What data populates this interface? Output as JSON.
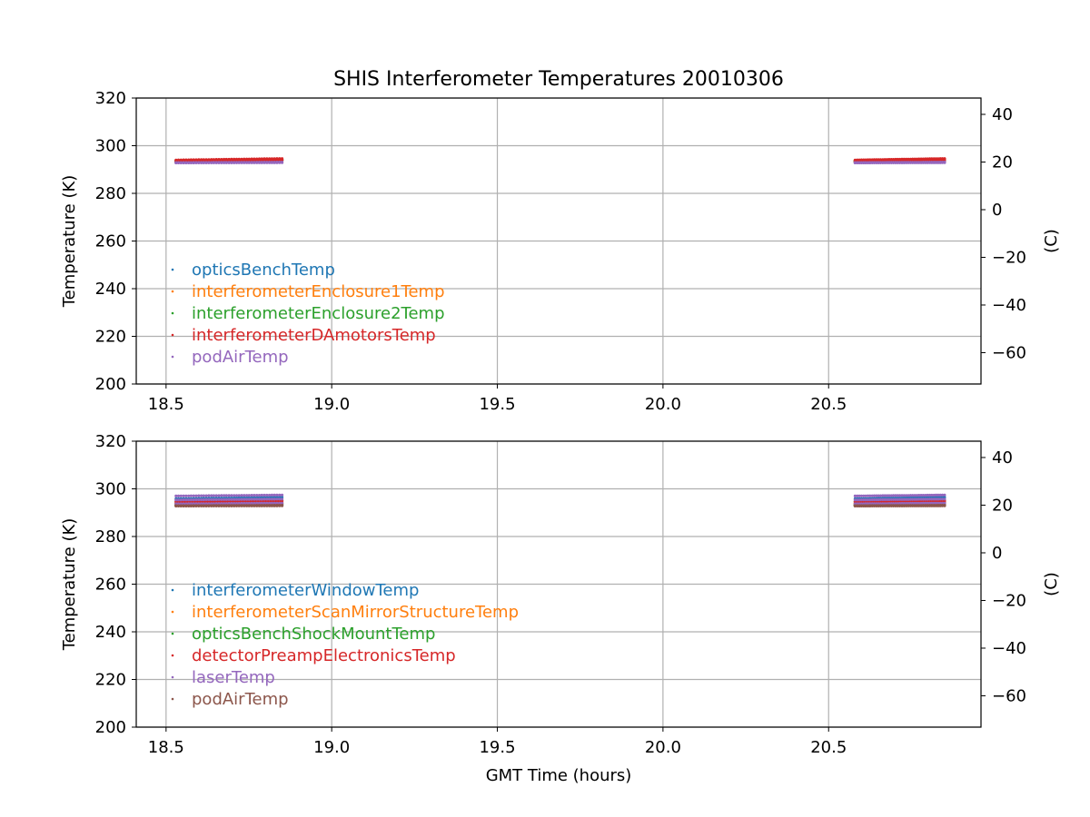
{
  "title": "SHIS Interferometer Temperatures 20010306",
  "xlabel": "GMT Time (hours)",
  "chart_data": [
    {
      "type": "scatter",
      "ylabel": "Temperature (K)",
      "y2label": "(C)",
      "xlim": [
        18.41,
        20.96
      ],
      "ylim": [
        200,
        320
      ],
      "xticks": [
        "18.5",
        "19.0",
        "19.5",
        "20.0",
        "20.5"
      ],
      "yticks": [
        "200",
        "220",
        "240",
        "260",
        "280",
        "300",
        "320"
      ],
      "y2ticks": [
        "−60",
        "−40",
        "−20",
        "0",
        "20",
        "40"
      ],
      "grid": true,
      "legend_position": "lower-left",
      "segments": [
        [
          18.53,
          18.85
        ],
        [
          20.58,
          20.85
        ]
      ],
      "series": [
        {
          "name": "opticsBenchTemp",
          "color": "#1f77b4",
          "start": [
            293.6,
            293.8
          ],
          "end": [
            294.0,
            294.2
          ]
        },
        {
          "name": "interferometerEnclosure1Temp",
          "color": "#ff7f0e",
          "start": [
            293.4,
            293.7
          ],
          "end": [
            293.9,
            294.3
          ]
        },
        {
          "name": "interferometerEnclosure2Temp",
          "color": "#2ca02c",
          "start": [
            293.3,
            293.5
          ],
          "end": [
            293.8,
            294.0
          ]
        },
        {
          "name": "interferometerDAmotorsTemp",
          "color": "#d62728",
          "start": [
            293.2,
            294.0
          ],
          "end": [
            293.8,
            294.6
          ]
        },
        {
          "name": "podAirTemp",
          "color": "#9467bd",
          "start": [
            292.8,
            292.9
          ],
          "end": [
            292.9,
            293.1
          ]
        }
      ]
    },
    {
      "type": "scatter",
      "ylabel": "Temperature (K)",
      "y2label": "(C)",
      "xlim": [
        18.41,
        20.96
      ],
      "ylim": [
        200,
        320
      ],
      "xticks": [
        "18.5",
        "19.0",
        "19.5",
        "20.0",
        "20.5"
      ],
      "yticks": [
        "200",
        "220",
        "240",
        "260",
        "280",
        "300",
        "320"
      ],
      "y2ticks": [
        "−60",
        "−40",
        "−20",
        "0",
        "20",
        "40"
      ],
      "grid": true,
      "legend_position": "lower-left",
      "segments": [
        [
          18.53,
          18.85
        ],
        [
          20.58,
          20.85
        ]
      ],
      "series": [
        {
          "name": "interferometerWindowTemp",
          "color": "#1f77b4",
          "start": [
            293.5,
            295.8
          ],
          "end": [
            293.8,
            296.5
          ]
        },
        {
          "name": "interferometerScanMirrorStructureTemp",
          "color": "#ff7f0e",
          "start": [
            293.4,
            294.5
          ],
          "end": [
            293.6,
            295.0
          ]
        },
        {
          "name": "opticsBenchShockMountTemp",
          "color": "#2ca02c",
          "start": [
            293.0,
            293.2
          ],
          "end": [
            293.1,
            293.8
          ]
        },
        {
          "name": "detectorPreampElectronicsTemp",
          "color": "#d62728",
          "start": [
            293.2,
            294.7
          ],
          "end": [
            293.4,
            294.9
          ]
        },
        {
          "name": "laserTemp",
          "color": "#9467bd",
          "start": [
            293.7,
            297.0
          ],
          "end": [
            294.0,
            297.4
          ]
        },
        {
          "name": "podAirTemp",
          "color": "#8c564b",
          "start": [
            292.8,
            292.9
          ],
          "end": [
            292.9,
            293.1
          ]
        }
      ]
    }
  ]
}
